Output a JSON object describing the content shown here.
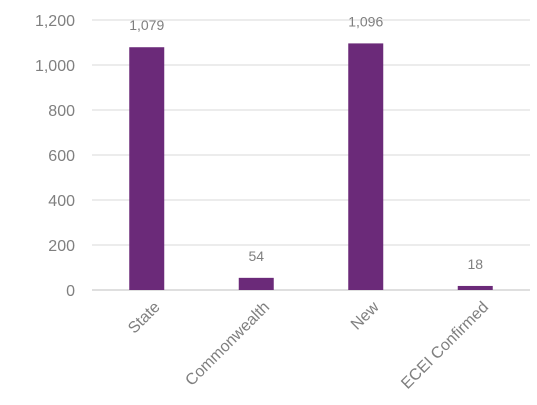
{
  "chart_data": {
    "type": "bar",
    "title": "",
    "xlabel": "",
    "ylabel": "",
    "categories": [
      "State",
      "Commonwealth",
      "New",
      "ECEI Confirmed"
    ],
    "values": [
      1079,
      54,
      1096,
      18
    ],
    "data_labels": [
      "1,079",
      "54",
      "1,096",
      "18"
    ],
    "ylim": [
      0,
      1200
    ],
    "yticks": [
      0,
      200,
      400,
      600,
      800,
      1000,
      1200
    ],
    "ytick_labels": [
      "0",
      "200",
      "400",
      "600",
      "800",
      "1,000",
      "1,200"
    ],
    "grid": true,
    "legend": "none",
    "bar_color": "#6b2a79"
  }
}
